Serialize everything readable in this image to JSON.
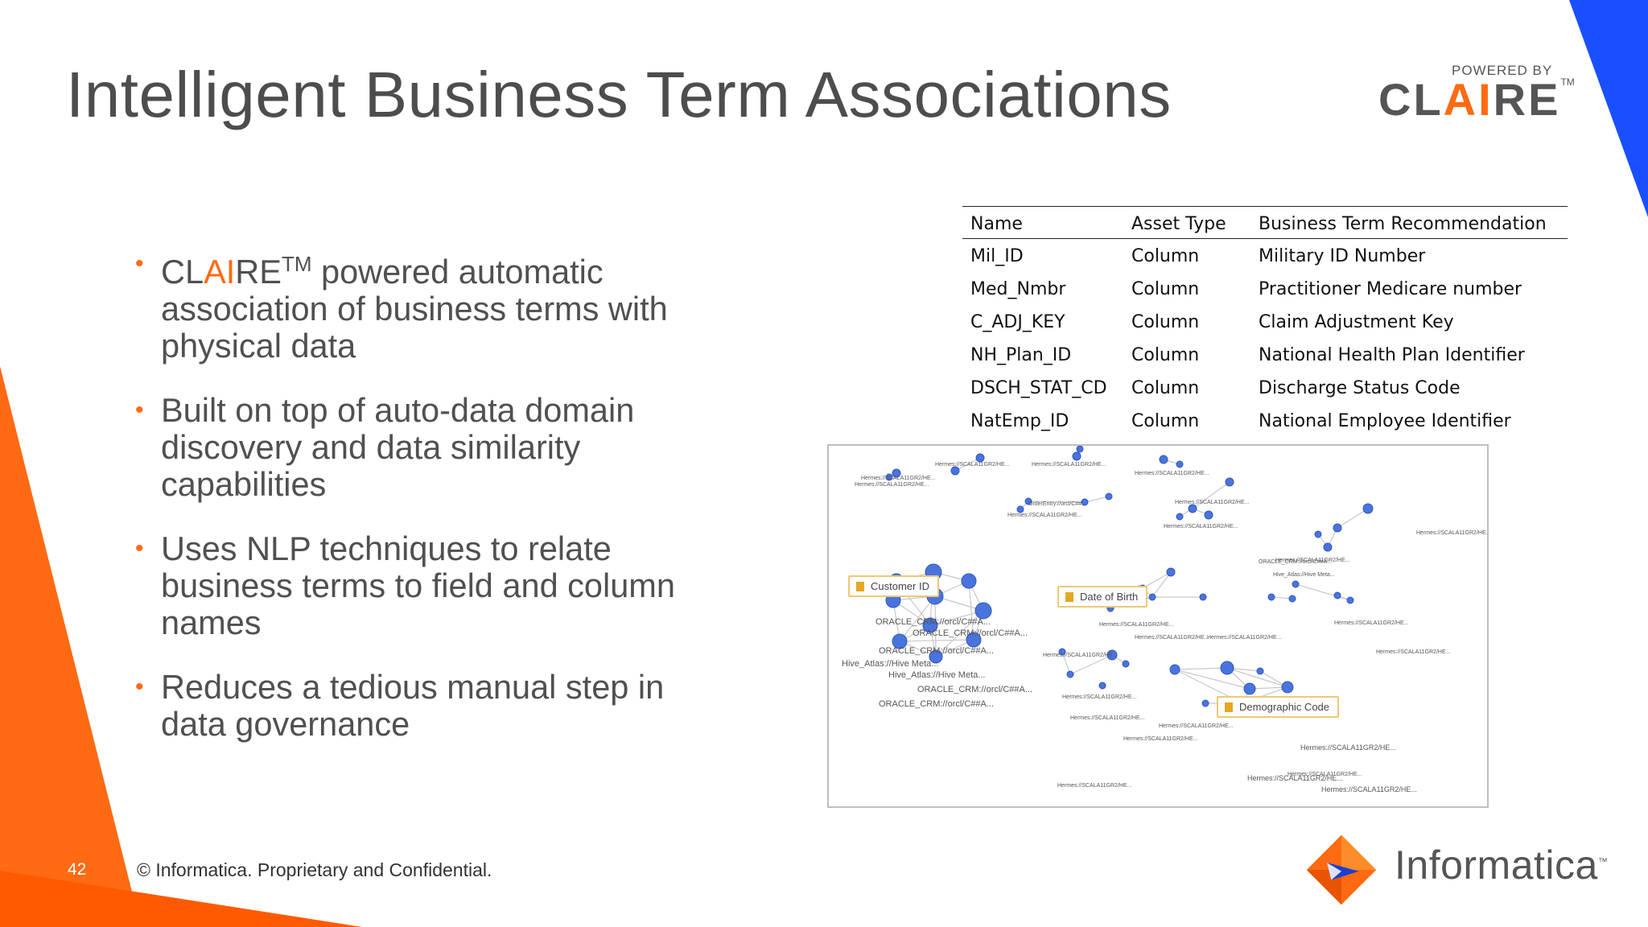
{
  "slide": {
    "title": "Intelligent Business Term Associations",
    "page_number": "42",
    "footer": "© Informatica. Proprietary and Confidential."
  },
  "brand": {
    "powered_by": "POWERED BY",
    "claire_pre": "CL",
    "claire_ai": "AI",
    "claire_post": "RE",
    "claire_tm": "TM",
    "informatica": "Informatica",
    "informatica_tm": "™",
    "accent": "#ff6a13",
    "blue": "#1a4fff"
  },
  "bullets": [
    {
      "brand_pre": "CL",
      "brand_ai": "AI",
      "brand_post": "RE",
      "tm": "TM",
      "text": " powered automatic association of business terms with physical data"
    },
    {
      "text": "Built on top of auto-data domain discovery and data similarity capabilities"
    },
    {
      "text": "Uses NLP techniques to relate business terms to field and column names"
    },
    {
      "text": "Reduces a tedious manual step in data governance"
    }
  ],
  "table": {
    "headers": [
      "Name",
      "Asset Type",
      "Business Term Recommendation"
    ],
    "rows": [
      [
        "Mil_ID",
        "Column",
        "Military ID Number"
      ],
      [
        "Med_Nmbr",
        "Column",
        "Practitioner Medicare number"
      ],
      [
        "C_ADJ_KEY",
        "Column",
        "Claim Adjustment Key"
      ],
      [
        "NH_Plan_ID",
        "Column",
        "National Health Plan Identifier"
      ],
      [
        "DSCH_STAT_CD",
        "Column",
        "Discharge Status Code"
      ],
      [
        "NatEmp_ID",
        "Column",
        "National Employee Identifier"
      ]
    ]
  },
  "graph": {
    "callouts": [
      "Customer ID",
      "Date of Birth",
      "Demographic Code"
    ],
    "node_labels": {
      "hermes": "Hermes://SCALA11GR2/HE...",
      "oracle": "ORACLE_CRM://orcl/C##A...",
      "hive": "Hive_Atlas://Hive Meta...",
      "order": "OrderEntry://orcl/C##..."
    }
  }
}
